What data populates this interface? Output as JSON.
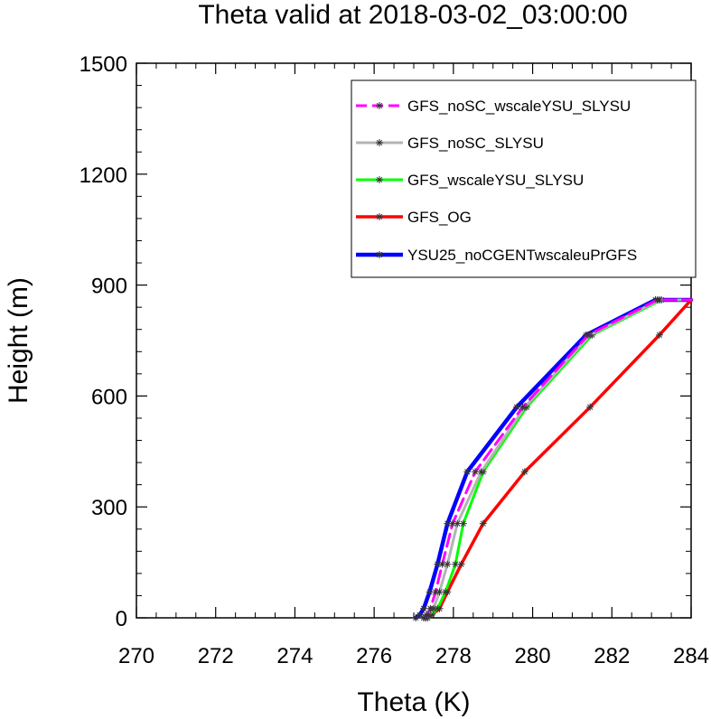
{
  "chart_data": {
    "type": "line",
    "title": "Theta valid at 2018-03-02_03:00:00",
    "xlabel": "Theta (K)",
    "ylabel": "Height (m)",
    "xlim": [
      270,
      284
    ],
    "ylim": [
      0,
      1500
    ],
    "xticks": [
      "270",
      "272",
      "274",
      "276",
      "278",
      "280",
      "282",
      "284"
    ],
    "yticks": [
      "0",
      "300",
      "600",
      "900",
      "1200",
      "1500"
    ],
    "legend_position": "top-right",
    "series": [
      {
        "name": "GFS_noSC_wscaleYSU_SLYSU",
        "color": "#ff00ff",
        "dash": "dashed",
        "x": [
          277.25,
          277.32,
          277.42,
          277.55,
          277.72,
          277.98,
          278.55,
          279.75,
          281.4,
          283.15,
          284.0
        ],
        "y": [
          0,
          8,
          25,
          70,
          145,
          255,
          395,
          570,
          765,
          860,
          860
        ]
      },
      {
        "name": "GFS_noSC_SLYSU",
        "color": "#b4b4b4",
        "dash": "solid",
        "x": [
          277.3,
          277.38,
          277.5,
          277.65,
          277.85,
          278.1,
          278.7,
          279.8,
          281.45,
          283.2,
          284.0
        ],
        "y": [
          0,
          8,
          25,
          70,
          145,
          255,
          395,
          570,
          765,
          860,
          860
        ]
      },
      {
        "name": "GFS_wscaleYSU_SLYSU",
        "color": "#00ff00",
        "dash": "solid",
        "x": [
          277.35,
          277.45,
          277.6,
          277.8,
          278.05,
          278.25,
          278.75,
          279.85,
          281.5,
          283.25,
          284.0
        ],
        "y": [
          0,
          8,
          25,
          70,
          145,
          255,
          395,
          570,
          765,
          860,
          860
        ]
      },
      {
        "name": "GFS_OG",
        "color": "#ff0000",
        "dash": "solid",
        "x": [
          277.3,
          277.45,
          277.65,
          277.85,
          278.2,
          278.75,
          279.8,
          281.45,
          283.2,
          284.0
        ],
        "y": [
          0,
          8,
          25,
          70,
          145,
          255,
          395,
          570,
          765,
          860
        ]
      },
      {
        "name": "YSU25_noCGENTwscaleuPrGFS",
        "color": "#0000ff",
        "dash": "solid",
        "x": [
          277.05,
          277.15,
          277.25,
          277.4,
          277.6,
          277.85,
          278.35,
          279.6,
          281.35,
          283.1,
          284.0
        ],
        "y": [
          0,
          8,
          25,
          70,
          145,
          255,
          395,
          570,
          765,
          860,
          860
        ]
      }
    ]
  }
}
